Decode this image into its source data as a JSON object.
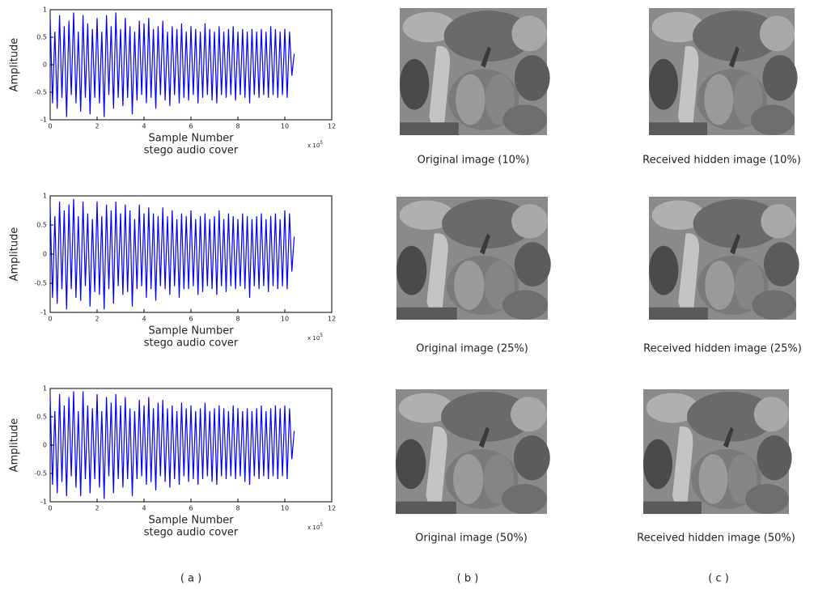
{
  "chart_data": [
    {
      "type": "line",
      "color": "#0000ff",
      "xlabel": "Sample Number",
      "caption": "stego audio cover",
      "ylabel": "Amplitude",
      "multiplier": "x 10",
      "multiplier_exponent": "5",
      "xlim": [
        0,
        12
      ],
      "xticks": [
        0,
        2,
        4,
        6,
        8,
        10,
        12
      ],
      "ylim": [
        -1,
        1
      ],
      "yticks": [
        -1,
        -0.5,
        0,
        0.5,
        1
      ],
      "x": [
        0,
        0.1,
        0.2,
        0.3,
        0.4,
        0.5,
        0.6,
        0.7,
        0.8,
        0.9,
        1,
        1.1,
        1.2,
        1.3,
        1.4,
        1.5,
        1.6,
        1.7,
        1.8,
        1.9,
        2,
        2.1,
        2.2,
        2.3,
        2.4,
        2.5,
        2.6,
        2.7,
        2.8,
        2.9,
        3,
        3.1,
        3.2,
        3.3,
        3.4,
        3.5,
        3.6,
        3.7,
        3.8,
        3.9,
        4,
        4.1,
        4.2,
        4.3,
        4.4,
        4.5,
        4.6,
        4.7,
        4.8,
        4.9,
        5,
        5.1,
        5.2,
        5.3,
        5.4,
        5.5,
        5.6,
        5.7,
        5.8,
        5.9,
        6,
        6.1,
        6.2,
        6.3,
        6.4,
        6.5,
        6.6,
        6.7,
        6.8,
        6.9,
        7,
        7.1,
        7.2,
        7.3,
        7.4,
        7.5,
        7.6,
        7.7,
        7.8,
        7.9,
        8,
        8.1,
        8.2,
        8.3,
        8.4,
        8.5,
        8.6,
        8.7,
        8.8,
        8.9,
        9,
        9.1,
        9.2,
        9.3,
        9.4,
        9.5,
        9.6,
        9.7,
        9.8,
        9.9,
        10,
        10.1,
        10.2,
        10.3,
        10.4
      ],
      "values": [
        0.85,
        -0.7,
        0.6,
        -0.8,
        0.9,
        -0.6,
        0.7,
        -0.95,
        0.8,
        -0.55,
        0.95,
        -0.7,
        0.6,
        -0.85,
        0.9,
        -0.6,
        0.75,
        -0.9,
        0.65,
        -0.6,
        0.85,
        -0.7,
        0.6,
        -0.95,
        0.9,
        -0.55,
        0.7,
        -0.8,
        0.95,
        -0.6,
        0.65,
        -0.75,
        0.85,
        -0.6,
        0.7,
        -0.9,
        0.6,
        -0.65,
        0.8,
        -0.55,
        0.75,
        -0.7,
        0.85,
        -0.6,
        0.65,
        -0.8,
        0.7,
        -0.55,
        0.8,
        -0.65,
        0.6,
        -0.75,
        0.7,
        -0.55,
        0.65,
        -0.7,
        0.75,
        -0.6,
        0.6,
        -0.65,
        0.7,
        -0.55,
        0.65,
        -0.7,
        0.6,
        -0.6,
        0.75,
        -0.55,
        0.65,
        -0.65,
        0.6,
        -0.7,
        0.7,
        -0.55,
        0.6,
        -0.6,
        0.65,
        -0.55,
        0.7,
        -0.65,
        0.6,
        -0.55,
        0.65,
        -0.6,
        0.6,
        -0.7,
        0.65,
        -0.55,
        0.6,
        -0.6,
        0.65,
        -0.55,
        0.6,
        -0.6,
        0.7,
        -0.55,
        0.65,
        -0.6,
        0.6,
        -0.55,
        0.65,
        -0.6,
        0.6,
        -0.2,
        0.2
      ]
    },
    {
      "type": "line",
      "color": "#0000ff",
      "xlabel": "Sample Number",
      "caption": "stego audio cover",
      "ylabel": "Amplitude",
      "multiplier": "x 10",
      "multiplier_exponent": "5",
      "xlim": [
        0,
        12
      ],
      "xticks": [
        0,
        2,
        4,
        6,
        8,
        10,
        12
      ],
      "ylim": [
        -1,
        1
      ],
      "yticks": [
        -1,
        -0.5,
        0,
        0.5,
        1
      ],
      "x": [
        0,
        0.1,
        0.2,
        0.3,
        0.4,
        0.5,
        0.6,
        0.7,
        0.8,
        0.9,
        1,
        1.1,
        1.2,
        1.3,
        1.4,
        1.5,
        1.6,
        1.7,
        1.8,
        1.9,
        2,
        2.1,
        2.2,
        2.3,
        2.4,
        2.5,
        2.6,
        2.7,
        2.8,
        2.9,
        3,
        3.1,
        3.2,
        3.3,
        3.4,
        3.5,
        3.6,
        3.7,
        3.8,
        3.9,
        4,
        4.1,
        4.2,
        4.3,
        4.4,
        4.5,
        4.6,
        4.7,
        4.8,
        4.9,
        5,
        5.1,
        5.2,
        5.3,
        5.4,
        5.5,
        5.6,
        5.7,
        5.8,
        5.9,
        6,
        6.1,
        6.2,
        6.3,
        6.4,
        6.5,
        6.6,
        6.7,
        6.8,
        6.9,
        7,
        7.1,
        7.2,
        7.3,
        7.4,
        7.5,
        7.6,
        7.7,
        7.8,
        7.9,
        8,
        8.1,
        8.2,
        8.3,
        8.4,
        8.5,
        8.6,
        8.7,
        8.8,
        8.9,
        9,
        9.1,
        9.2,
        9.3,
        9.4,
        9.5,
        9.6,
        9.7,
        9.8,
        9.9,
        10,
        10.1,
        10.2,
        10.3,
        10.4
      ],
      "values": [
        0.8,
        -0.75,
        0.65,
        -0.85,
        0.9,
        -0.6,
        0.75,
        -0.95,
        0.85,
        -0.6,
        0.95,
        -0.75,
        0.65,
        -0.8,
        0.9,
        -0.55,
        0.7,
        -0.9,
        0.6,
        -0.65,
        0.9,
        -0.7,
        0.65,
        -0.95,
        0.85,
        -0.6,
        0.75,
        -0.85,
        0.9,
        -0.55,
        0.7,
        -0.7,
        0.85,
        -0.65,
        0.75,
        -0.9,
        0.6,
        -0.6,
        0.85,
        -0.55,
        0.7,
        -0.75,
        0.8,
        -0.6,
        0.7,
        -0.8,
        0.65,
        -0.55,
        0.8,
        -0.6,
        0.65,
        -0.7,
        0.75,
        -0.55,
        0.6,
        -0.75,
        0.7,
        -0.6,
        0.65,
        -0.6,
        0.75,
        -0.55,
        0.6,
        -0.7,
        0.65,
        -0.65,
        0.7,
        -0.55,
        0.6,
        -0.6,
        0.65,
        -0.7,
        0.75,
        -0.55,
        0.6,
        -0.65,
        0.7,
        -0.55,
        0.65,
        -0.6,
        0.6,
        -0.55,
        0.7,
        -0.6,
        0.65,
        -0.75,
        0.6,
        -0.55,
        0.65,
        -0.6,
        0.7,
        -0.55,
        0.6,
        -0.65,
        0.65,
        -0.55,
        0.7,
        -0.6,
        0.6,
        -0.55,
        0.75,
        -0.6,
        0.7,
        -0.3,
        0.3
      ]
    },
    {
      "type": "line",
      "color": "#0000ff",
      "xlabel": "Sample Number",
      "caption": "stego audio cover",
      "ylabel": "Amplitude",
      "multiplier": "x 10",
      "multiplier_exponent": "5",
      "xlim": [
        0,
        12
      ],
      "xticks": [
        0,
        2,
        4,
        6,
        8,
        10,
        12
      ],
      "ylim": [
        -1,
        1
      ],
      "yticks": [
        -1,
        -0.5,
        0,
        0.5,
        1
      ],
      "x": [
        0,
        0.1,
        0.2,
        0.3,
        0.4,
        0.5,
        0.6,
        0.7,
        0.8,
        0.9,
        1,
        1.1,
        1.2,
        1.3,
        1.4,
        1.5,
        1.6,
        1.7,
        1.8,
        1.9,
        2,
        2.1,
        2.2,
        2.3,
        2.4,
        2.5,
        2.6,
        2.7,
        2.8,
        2.9,
        3,
        3.1,
        3.2,
        3.3,
        3.4,
        3.5,
        3.6,
        3.7,
        3.8,
        3.9,
        4,
        4.1,
        4.2,
        4.3,
        4.4,
        4.5,
        4.6,
        4.7,
        4.8,
        4.9,
        5,
        5.1,
        5.2,
        5.3,
        5.4,
        5.5,
        5.6,
        5.7,
        5.8,
        5.9,
        6,
        6.1,
        6.2,
        6.3,
        6.4,
        6.5,
        6.6,
        6.7,
        6.8,
        6.9,
        7,
        7.1,
        7.2,
        7.3,
        7.4,
        7.5,
        7.6,
        7.7,
        7.8,
        7.9,
        8,
        8.1,
        8.2,
        8.3,
        8.4,
        8.5,
        8.6,
        8.7,
        8.8,
        8.9,
        9,
        9.1,
        9.2,
        9.3,
        9.4,
        9.5,
        9.6,
        9.7,
        9.8,
        9.9,
        10,
        10.1,
        10.2,
        10.3,
        10.4
      ],
      "values": [
        0.85,
        -0.7,
        0.6,
        -0.85,
        0.9,
        -0.65,
        0.7,
        -0.9,
        0.85,
        -0.55,
        0.95,
        -0.75,
        0.6,
        -0.9,
        0.95,
        -0.6,
        0.7,
        -0.85,
        0.65,
        -0.6,
        0.9,
        -0.75,
        0.6,
        -0.95,
        0.85,
        -0.55,
        0.75,
        -0.85,
        0.9,
        -0.6,
        0.7,
        -0.75,
        0.85,
        -0.6,
        0.65,
        -0.9,
        0.6,
        -0.6,
        0.8,
        -0.55,
        0.7,
        -0.7,
        0.85,
        -0.65,
        0.65,
        -0.8,
        0.75,
        -0.55,
        0.8,
        -0.65,
        0.65,
        -0.75,
        0.7,
        -0.6,
        0.6,
        -0.7,
        0.75,
        -0.55,
        0.65,
        -0.65,
        0.7,
        -0.6,
        0.6,
        -0.7,
        0.65,
        -0.6,
        0.75,
        -0.55,
        0.6,
        -0.65,
        0.65,
        -0.7,
        0.7,
        -0.55,
        0.65,
        -0.6,
        0.6,
        -0.55,
        0.7,
        -0.6,
        0.65,
        -0.55,
        0.6,
        -0.65,
        0.65,
        -0.7,
        0.6,
        -0.55,
        0.65,
        -0.6,
        0.7,
        -0.55,
        0.6,
        -0.6,
        0.65,
        -0.55,
        0.7,
        -0.6,
        0.65,
        -0.55,
        0.7,
        -0.6,
        0.65,
        -0.25,
        0.25
      ]
    }
  ],
  "images": [
    {
      "caption": "Original image (10%)"
    },
    {
      "caption": "Received hidden image (10%)"
    },
    {
      "caption": "Original image (25%)"
    },
    {
      "caption": "Received hidden image (25%)"
    },
    {
      "caption": "Original image (50%)"
    },
    {
      "caption": "Received hidden image (50%)"
    }
  ],
  "panel_labels": [
    "( a )",
    "( b )",
    "( c )"
  ]
}
